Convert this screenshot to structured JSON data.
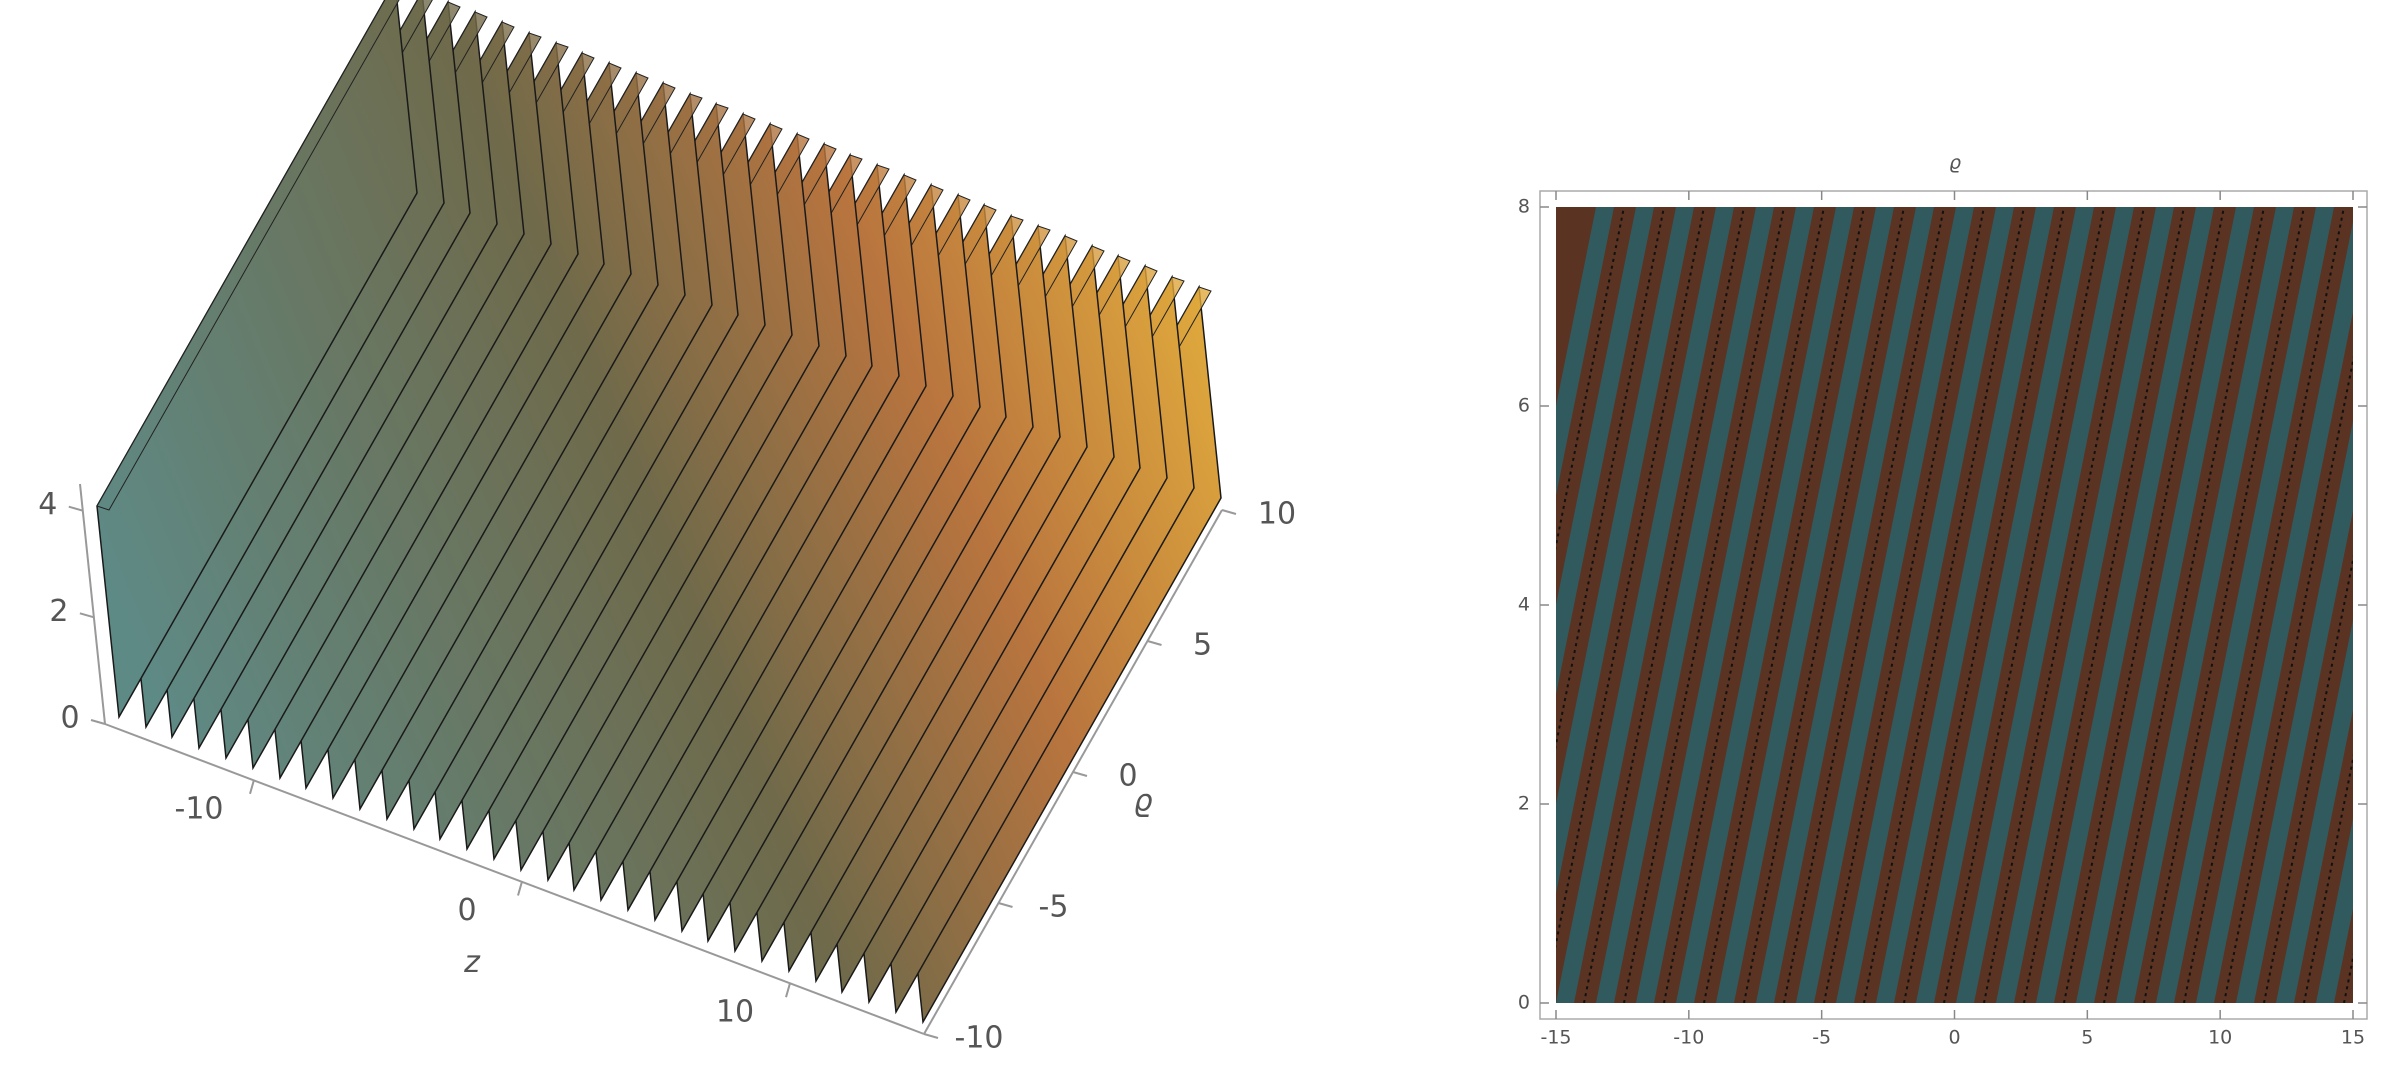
{
  "chart_data": [
    {
      "type": "surface3d",
      "x_label": "z",
      "y_label": "ϱ",
      "xlim": [
        -15,
        15
      ],
      "ylim": [
        -10,
        10
      ],
      "zlim": [
        0,
        4.5
      ],
      "xticks": [
        -10,
        0,
        10
      ],
      "yticks": [
        -10,
        -5,
        0,
        5,
        10
      ],
      "zticks": [
        0,
        2,
        4
      ]
    },
    {
      "type": "contour",
      "y_label": "ϱ",
      "xlim": [
        -15,
        15
      ],
      "ylim": [
        0,
        8
      ],
      "xticks": [
        -15,
        -10,
        -5,
        0,
        5,
        10,
        15
      ],
      "yticks": [
        0,
        2,
        4,
        6,
        8
      ]
    }
  ]
}
